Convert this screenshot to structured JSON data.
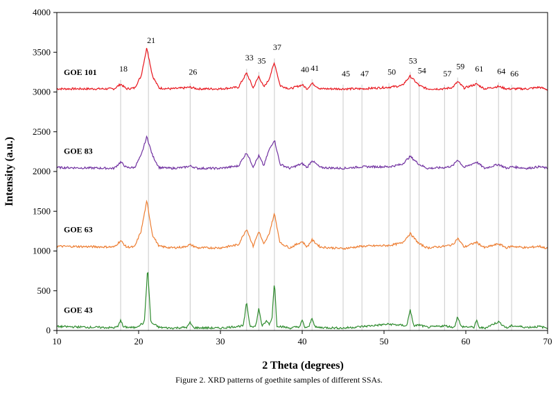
{
  "chart_data": {
    "type": "line",
    "xlabel": "2 Theta (degrees)",
    "ylabel": "Intensity (a.u.)",
    "xlim": [
      10,
      70
    ],
    "ylim": [
      0,
      4000
    ],
    "x_ticks": [
      "10",
      "20",
      "30",
      "40",
      "50",
      "60",
      "70"
    ],
    "y_ticks": [
      "0",
      "500",
      "1000",
      "1500",
      "2000",
      "2500",
      "3000",
      "3500",
      "4000"
    ],
    "grid": false,
    "peak_markers": [
      {
        "label": "18",
        "x": 17.8
      },
      {
        "label": "21",
        "x": 21.2
      },
      {
        "label": "26",
        "x": 26.3
      },
      {
        "label": "33",
        "x": 33.2
      },
      {
        "label": "35",
        "x": 34.7
      },
      {
        "label": "37",
        "x": 36.6
      },
      {
        "label": "40",
        "x": 40.0
      },
      {
        "label": "41",
        "x": 41.2
      },
      {
        "label": "45",
        "x": 45.0
      },
      {
        "label": "47",
        "x": 47.3
      },
      {
        "label": "50",
        "x": 50.6
      },
      {
        "label": "53",
        "x": 53.2
      },
      {
        "label": "54",
        "x": 54.3
      },
      {
        "label": "57",
        "x": 57.4
      },
      {
        "label": "59",
        "x": 59.0
      },
      {
        "label": "61",
        "x": 61.3
      },
      {
        "label": "64",
        "x": 64.0
      },
      {
        "label": "66",
        "x": 65.6
      }
    ],
    "series": [
      {
        "name": "GOE 101",
        "color": "#e8141c",
        "x": [
          10,
          17.0,
          17.8,
          18.5,
          19.5,
          20.3,
          21.0,
          21.7,
          22.5,
          24,
          25.5,
          26.3,
          27.2,
          30,
          32.2,
          33.2,
          34.0,
          34.7,
          35.3,
          35.9,
          36.6,
          37.3,
          38.5,
          40.0,
          40.6,
          41.2,
          42.2,
          45.0,
          47.3,
          50.6,
          52.2,
          53.2,
          54.3,
          55.3,
          57.4,
          58.4,
          59.0,
          59.8,
          61.3,
          62.3,
          64.0,
          65.0,
          65.6,
          67.5,
          69.0,
          70
        ],
        "y": [
          3040,
          3040,
          3100,
          3040,
          3050,
          3200,
          3560,
          3200,
          3050,
          3040,
          3050,
          3060,
          3040,
          3040,
          3060,
          3240,
          3050,
          3200,
          3060,
          3150,
          3370,
          3080,
          3040,
          3090,
          3040,
          3110,
          3040,
          3040,
          3040,
          3060,
          3080,
          3200,
          3080,
          3040,
          3040,
          3060,
          3130,
          3050,
          3100,
          3040,
          3070,
          3040,
          3040,
          3040,
          3060,
          3030
        ]
      },
      {
        "name": "GOE 83",
        "color": "#7030a0",
        "x": [
          10,
          17.0,
          17.8,
          18.5,
          19.5,
          20.3,
          21.0,
          21.7,
          22.5,
          24,
          25.5,
          26.3,
          27.2,
          30,
          32.2,
          33.2,
          34.0,
          34.7,
          35.3,
          35.9,
          36.6,
          37.3,
          38.5,
          40.0,
          40.6,
          41.2,
          42.2,
          45.0,
          47.3,
          50.6,
          52.2,
          53.2,
          54.3,
          55.3,
          57.4,
          58.4,
          59.0,
          59.8,
          61.3,
          62.3,
          64.0,
          65.0,
          65.6,
          67.5,
          69.0,
          70
        ],
        "y": [
          2050,
          2040,
          2120,
          2050,
          2050,
          2200,
          2440,
          2200,
          2050,
          2040,
          2050,
          2070,
          2040,
          2040,
          2070,
          2240,
          2060,
          2200,
          2070,
          2260,
          2400,
          2090,
          2040,
          2100,
          2050,
          2140,
          2050,
          2040,
          2060,
          2060,
          2090,
          2190,
          2090,
          2040,
          2050,
          2070,
          2150,
          2050,
          2120,
          2040,
          2090,
          2040,
          2060,
          2040,
          2060,
          2040
        ]
      },
      {
        "name": "GOE 63",
        "color": "#ed7d31",
        "x": [
          10,
          17.0,
          17.8,
          18.5,
          19.5,
          20.3,
          21.0,
          21.7,
          22.5,
          24,
          25.5,
          26.3,
          27.2,
          30,
          32.2,
          33.2,
          34.0,
          34.7,
          35.3,
          35.9,
          36.6,
          37.3,
          38.5,
          40.0,
          40.6,
          41.2,
          42.2,
          45.0,
          47.3,
          50.6,
          52.2,
          53.2,
          54.3,
          55.3,
          57.4,
          58.4,
          59.0,
          59.8,
          61.3,
          62.3,
          64.0,
          65.0,
          65.6,
          67.5,
          69.0,
          70
        ],
        "y": [
          1060,
          1050,
          1130,
          1050,
          1050,
          1250,
          1630,
          1200,
          1060,
          1040,
          1050,
          1080,
          1040,
          1040,
          1080,
          1280,
          1060,
          1250,
          1080,
          1200,
          1470,
          1100,
          1040,
          1120,
          1050,
          1140,
          1050,
          1030,
          1060,
          1070,
          1100,
          1220,
          1090,
          1040,
          1060,
          1080,
          1160,
          1050,
          1110,
          1040,
          1090,
          1040,
          1060,
          1040,
          1060,
          1030
        ]
      },
      {
        "name": "GOE 43",
        "color": "#2e8b2e",
        "x": [
          10,
          17.0,
          17.5,
          17.8,
          18.1,
          19.5,
          20.7,
          21.1,
          21.5,
          22.5,
          24,
          25.9,
          26.3,
          26.7,
          30,
          32.8,
          33.2,
          33.6,
          34.3,
          34.7,
          35.1,
          35.6,
          36.0,
          36.3,
          36.6,
          36.9,
          38.5,
          39.7,
          40.0,
          40.3,
          40.8,
          41.2,
          41.6,
          45.0,
          47.3,
          50.6,
          52.8,
          53.2,
          53.6,
          54.3,
          55.3,
          57.4,
          58.6,
          59.0,
          59.4,
          61.0,
          61.3,
          61.6,
          62.3,
          64.0,
          65.0,
          65.6,
          67.5,
          69.0,
          70
        ],
        "y": [
          50,
          35,
          50,
          140,
          45,
          35,
          100,
          790,
          100,
          40,
          30,
          40,
          100,
          35,
          30,
          60,
          360,
          60,
          50,
          280,
          50,
          120,
          80,
          150,
          620,
          60,
          30,
          50,
          130,
          40,
          40,
          160,
          40,
          30,
          50,
          80,
          60,
          270,
          60,
          70,
          40,
          60,
          40,
          180,
          50,
          40,
          130,
          40,
          30,
          110,
          30,
          60,
          40,
          50,
          30
        ]
      }
    ]
  },
  "caption": "Figure 2. XRD patterns of goethite samples of different SSAs."
}
